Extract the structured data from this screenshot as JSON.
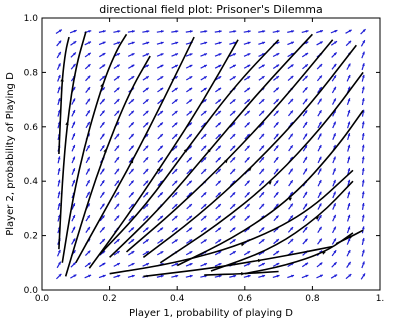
{
  "chart_data": {
    "type": "scatter",
    "subtype": "directional-field-streamplot",
    "title": "directional field plot: Prisoner's Dilemma",
    "xlabel": "Player 1, probability of playing D",
    "ylabel": "Player 2, probability of Playing D",
    "xlim": [
      0.0,
      1.0
    ],
    "ylim": [
      0.0,
      1.0
    ],
    "x_ticks": [
      "0.0",
      "0.2",
      "0.4",
      "0.6",
      "0.8",
      "1."
    ],
    "y_ticks": [
      "0.0",
      "0.2",
      "0.4",
      "0.6",
      "0.8",
      "1.0"
    ],
    "grid": false,
    "field_range": [
      0.05,
      0.95
    ],
    "field_grid_steps": 22,
    "arrow_color": "#1f1fd6",
    "stream_color": "#000000",
    "series": [
      {
        "x": [
          0.05,
          0.055,
          0.06,
          0.07,
          0.08
        ],
        "y": [
          0.5,
          0.65,
          0.78,
          0.88,
          0.93
        ]
      },
      {
        "x": [
          0.05,
          0.06,
          0.075,
          0.1,
          0.13
        ],
        "y": [
          0.15,
          0.4,
          0.62,
          0.82,
          0.95
        ]
      },
      {
        "x": [
          0.06,
          0.09,
          0.13,
          0.18,
          0.22,
          0.25
        ],
        "y": [
          0.1,
          0.33,
          0.55,
          0.76,
          0.88,
          0.94
        ]
      },
      {
        "x": [
          0.07,
          0.13,
          0.19,
          0.26,
          0.32
        ],
        "y": [
          0.05,
          0.3,
          0.52,
          0.73,
          0.86
        ]
      },
      {
        "x": [
          0.1,
          0.18,
          0.27,
          0.36,
          0.45
        ],
        "y": [
          0.1,
          0.28,
          0.48,
          0.7,
          0.93
        ]
      },
      {
        "x": [
          0.14,
          0.24,
          0.35,
          0.47,
          0.58
        ],
        "y": [
          0.08,
          0.25,
          0.45,
          0.68,
          0.92
        ]
      },
      {
        "x": [
          0.17,
          0.3,
          0.43,
          0.57,
          0.7
        ],
        "y": [
          0.13,
          0.3,
          0.52,
          0.75,
          0.92
        ]
      },
      {
        "x": [
          0.2,
          0.35,
          0.5,
          0.65,
          0.8
        ],
        "y": [
          0.12,
          0.3,
          0.52,
          0.74,
          0.94
        ]
      },
      {
        "x": [
          0.25,
          0.4,
          0.55,
          0.7,
          0.86
        ],
        "y": [
          0.14,
          0.3,
          0.48,
          0.68,
          0.92
        ]
      },
      {
        "x": [
          0.3,
          0.46,
          0.62,
          0.78,
          0.93
        ],
        "y": [
          0.12,
          0.27,
          0.45,
          0.66,
          0.9
        ]
      },
      {
        "x": [
          0.35,
          0.52,
          0.68,
          0.83,
          0.95
        ],
        "y": [
          0.1,
          0.24,
          0.4,
          0.6,
          0.8
        ]
      },
      {
        "x": [
          0.4,
          0.58,
          0.74,
          0.87,
          0.95
        ],
        "y": [
          0.09,
          0.2,
          0.34,
          0.52,
          0.66
        ]
      },
      {
        "x": [
          0.2,
          0.4,
          0.6,
          0.78,
          0.92
        ],
        "y": [
          0.06,
          0.1,
          0.17,
          0.28,
          0.44
        ]
      },
      {
        "x": [
          0.5,
          0.68,
          0.82,
          0.92
        ],
        "y": [
          0.07,
          0.15,
          0.27,
          0.4
        ]
      },
      {
        "x": [
          0.3,
          0.5,
          0.65,
          0.78,
          0.86
        ],
        "y": [
          0.05,
          0.08,
          0.11,
          0.14,
          0.16
        ]
      },
      {
        "x": [
          0.6,
          0.72,
          0.84,
          0.92
        ],
        "y": [
          0.06,
          0.09,
          0.14,
          0.21
        ]
      },
      {
        "x": [
          0.48,
          0.6,
          0.7
        ],
        "y": [
          0.055,
          0.06,
          0.068
        ]
      },
      {
        "x": [
          0.87,
          0.92,
          0.95
        ],
        "y": [
          0.17,
          0.2,
          0.22
        ]
      }
    ]
  }
}
